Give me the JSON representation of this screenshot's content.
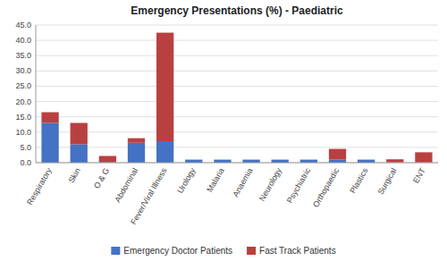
{
  "chart_data": {
    "type": "bar",
    "stacked": true,
    "title": "Emergency Presentations (%) - Paediatric",
    "categories": [
      "Respiratory",
      "Skin",
      "O & G",
      "Abdominal",
      "Fever/Viral Illness",
      "Urology",
      "Malaria",
      "Anaemia",
      "Neurology",
      "Psychiatric",
      "Orthopaedic",
      "Plastics",
      "Surgical",
      "ENT"
    ],
    "series": [
      {
        "name": "Emergency Doctor Patients",
        "color": "#4472C4",
        "values": [
          13.0,
          6.0,
          0.2,
          6.5,
          7.0,
          1.0,
          1.0,
          1.0,
          1.0,
          1.0,
          1.0,
          1.0,
          0.1,
          0.1
        ]
      },
      {
        "name": "Fast Track Patients",
        "color": "#B94040",
        "values": [
          3.5,
          7.0,
          2.0,
          1.5,
          35.5,
          0.0,
          0.0,
          0.0,
          0.0,
          0.0,
          3.5,
          0.0,
          1.0,
          3.3
        ]
      }
    ],
    "ylim": [
      0,
      45
    ],
    "yticks": [
      {
        "value": 0,
        "label": "0.0"
      },
      {
        "value": 5,
        "label": "5.0"
      },
      {
        "value": 10,
        "label": "10.0"
      },
      {
        "value": 15,
        "label": "15.0"
      },
      {
        "value": 20,
        "label": "20.0"
      },
      {
        "value": 25,
        "label": "25.0"
      },
      {
        "value": 30,
        "label": "30.0"
      },
      {
        "value": 35,
        "label": "35.0"
      },
      {
        "value": 40,
        "label": "40.0"
      },
      {
        "value": 45,
        "label": "45.0"
      }
    ],
    "grid": true,
    "legend": "bottom"
  }
}
